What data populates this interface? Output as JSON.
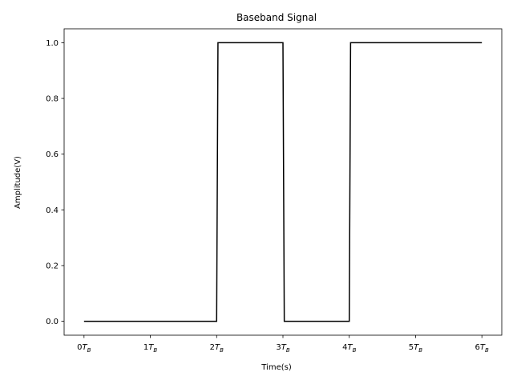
{
  "chart_data": {
    "type": "line",
    "title": "Baseband Signal",
    "xlabel": "Time(s)",
    "ylabel": "Amplitude(V)",
    "x_tick_values": [
      0,
      1,
      2,
      3,
      4,
      5,
      6
    ],
    "x_tick_labels": [
      {
        "num": "0",
        "sym": "T",
        "sub": "B"
      },
      {
        "num": "1",
        "sym": "T",
        "sub": "B"
      },
      {
        "num": "2",
        "sym": "T",
        "sub": "B"
      },
      {
        "num": "3",
        "sym": "T",
        "sub": "B"
      },
      {
        "num": "4",
        "sym": "T",
        "sub": "B"
      },
      {
        "num": "5",
        "sym": "T",
        "sub": "B"
      },
      {
        "num": "6",
        "sym": "T",
        "sub": "B"
      }
    ],
    "y_ticks": [
      "0.0",
      "0.2",
      "0.4",
      "0.6",
      "0.8",
      "1.0"
    ],
    "xlim": [
      -0.3,
      6.3
    ],
    "ylim": [
      -0.05,
      1.05
    ],
    "grid": false,
    "series": [
      {
        "color": "#000000",
        "points": [
          [
            0,
            0
          ],
          [
            2,
            0
          ],
          [
            2.02,
            1
          ],
          [
            3,
            1
          ],
          [
            3.02,
            0
          ],
          [
            4,
            0
          ],
          [
            4.02,
            1
          ],
          [
            6,
            1
          ]
        ]
      }
    ]
  }
}
